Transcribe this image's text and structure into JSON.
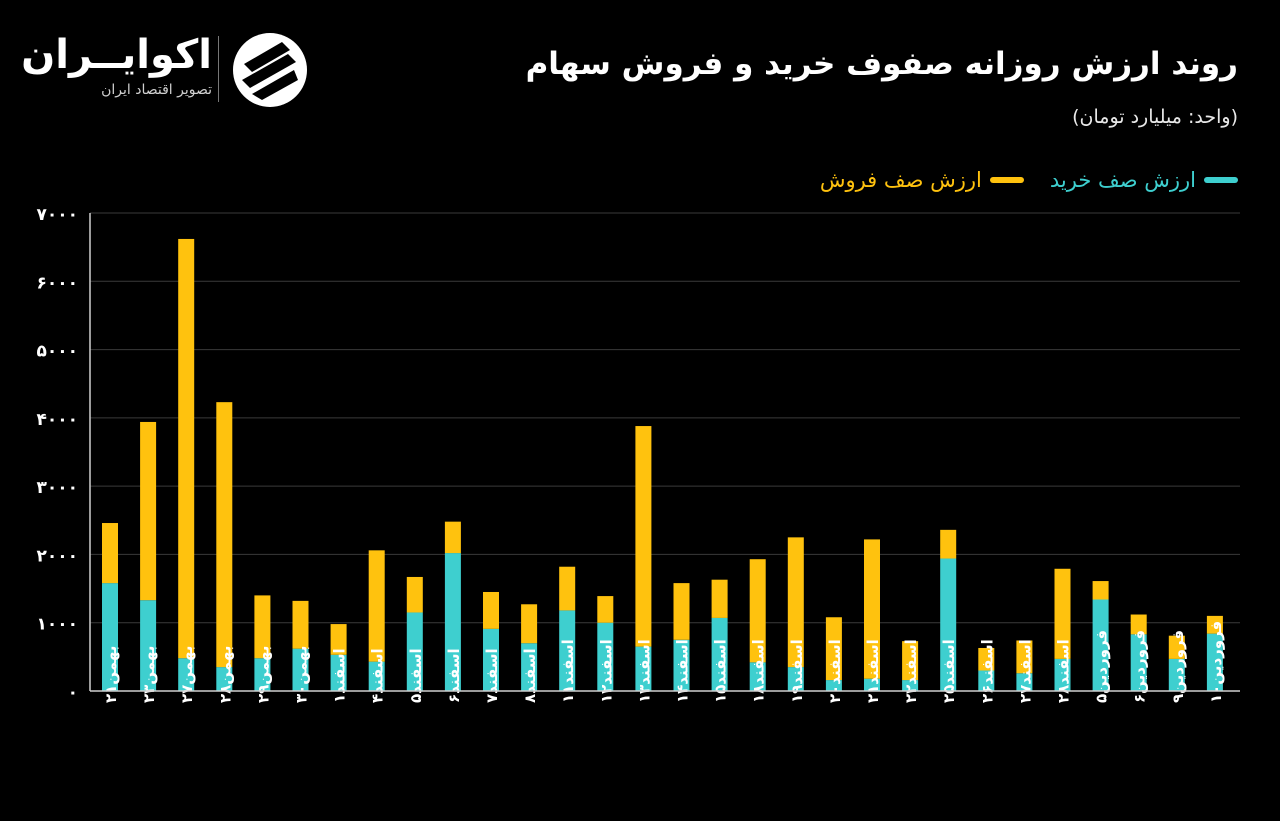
{
  "header": {
    "title": "روند ارزش روزانه صفوف خرید و فروش سهام",
    "unit": "(واحد: میلیارد تومان)"
  },
  "brand": {
    "name": "اکوایــران",
    "subtitle": "تصویر اقتصاد ایران",
    "logo_icon": "ecoiran-logo-icon"
  },
  "legend": {
    "buy_label": "ارزش صف خرید",
    "sell_label": "ارزش صف فروش"
  },
  "colors": {
    "background": "#000000",
    "buy": "#3ecfcf",
    "sell": "#ffc20e",
    "grid": "#3a3a3a",
    "axis": "#cfcfcf",
    "text": "#ffffff"
  },
  "chart_data": {
    "type": "bar",
    "stacked": true,
    "ylim": [
      0,
      7000
    ],
    "yticks": [
      "۷۰۰۰",
      "۶۰۰۰",
      "۵۰۰۰",
      "۴۰۰۰",
      "۳۰۰۰",
      "۲۰۰۰",
      "۱۰۰۰",
      "۰"
    ],
    "ytick_values": [
      7000,
      6000,
      5000,
      4000,
      3000,
      2000,
      1000,
      0
    ],
    "grid": true,
    "legend_position": "top-right",
    "categories": [
      "بهمن۲۱",
      "بهمن۲۳",
      "بهمن۲۷",
      "بهمن۲۸",
      "بهمن۲۹",
      "بهمن۳۰",
      "اسفند۱",
      "اسفند۴",
      "اسفند۵",
      "اسفند۶",
      "اسفند۷",
      "اسفند۸",
      "اسفند۱۱",
      "اسفند۱۲",
      "اسفند۱۳",
      "اسفند۱۴",
      "اسفند۱۵",
      "اسفند۱۸",
      "اسفند۱۹",
      "اسفند۲۰",
      "اسفند۲۱",
      "اسفند۲۲",
      "اسفند۲۵",
      "اسفند۲۶",
      "اسفند۲۷",
      "اسفند۲۸",
      "فروردین۵",
      "فروردین۶",
      "فروردین۹",
      "فروردین۱۰"
    ],
    "series": [
      {
        "name": "ارزش صف خرید",
        "values": [
          1580,
          1330,
          480,
          350,
          480,
          620,
          530,
          430,
          1150,
          2020,
          910,
          700,
          1180,
          1000,
          650,
          750,
          1070,
          420,
          350,
          160,
          180,
          160,
          1940,
          300,
          260,
          470,
          1340,
          830,
          470,
          840
        ]
      },
      {
        "name": "ارزش صف فروش",
        "values": [
          880,
          2610,
          6140,
          3880,
          920,
          700,
          450,
          1630,
          520,
          460,
          540,
          570,
          640,
          390,
          3230,
          830,
          560,
          1510,
          1900,
          920,
          2040,
          570,
          420,
          330,
          480,
          1320,
          270,
          290,
          340,
          260
        ]
      }
    ]
  }
}
